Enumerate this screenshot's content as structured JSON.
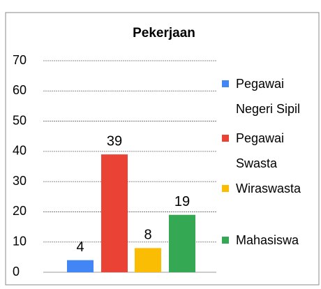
{
  "chart_data": {
    "type": "bar",
    "title": "Pekerjaan",
    "categories": [
      "Pegawai Negeri Sipil",
      "Pegawai Swasta",
      "Wiraswasta",
      "Mahasiswa"
    ],
    "values": [
      4,
      39,
      8,
      19
    ],
    "colors": [
      "#4285f4",
      "#ea4335",
      "#fbbc04",
      "#34a853"
    ],
    "ylim": [
      0,
      70
    ],
    "yticks": [
      0,
      10,
      20,
      30,
      40,
      50,
      60,
      70
    ],
    "grid": true,
    "legend": "right"
  }
}
